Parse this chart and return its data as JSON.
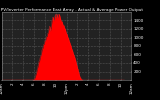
{
  "title": "Solar PV/Inverter Performance East Array - Actual & Average Power Output",
  "bg_color": "#000000",
  "plot_bg_color": "#222222",
  "grid_color": "#555555",
  "fill_color": "#ff0000",
  "line_color": "#ff2222",
  "ylim": [
    0,
    1600
  ],
  "xlim": [
    0,
    287
  ],
  "x_ticks": [
    0,
    24,
    48,
    72,
    96,
    120,
    144,
    168,
    192,
    216,
    240,
    264,
    287
  ],
  "x_tick_labels": [
    "12am",
    "2",
    "4",
    "6",
    "8",
    "10",
    "12pm",
    "2",
    "4",
    "6",
    "8",
    "10",
    "12am"
  ],
  "y_ticks": [
    200,
    400,
    600,
    800,
    1000,
    1200,
    1400
  ],
  "actual_power": [
    0,
    0,
    0,
    0,
    0,
    0,
    0,
    0,
    0,
    0,
    0,
    0,
    0,
    0,
    0,
    0,
    0,
    0,
    0,
    0,
    0,
    0,
    0,
    0,
    0,
    0,
    0,
    0,
    0,
    0,
    0,
    0,
    0,
    0,
    0,
    0,
    0,
    0,
    0,
    0,
    0,
    0,
    0,
    0,
    0,
    0,
    0,
    0,
    0,
    0,
    0,
    0,
    0,
    0,
    0,
    0,
    0,
    0,
    0,
    0,
    0,
    0,
    0,
    0,
    0,
    0,
    0,
    2,
    5,
    8,
    12,
    18,
    25,
    40,
    60,
    90,
    130,
    160,
    200,
    240,
    280,
    310,
    350,
    390,
    420,
    460,
    500,
    530,
    560,
    600,
    640,
    670,
    700,
    730,
    760,
    790,
    810,
    840,
    870,
    900,
    920,
    950,
    980,
    1010,
    1040,
    1070,
    1100,
    1130,
    1060,
    1100,
    1150,
    1200,
    1250,
    1280,
    1300,
    1320,
    1290,
    1310,
    1340,
    1380,
    1350,
    1380,
    1400,
    1420,
    1380,
    1360,
    1400,
    1430,
    1410,
    1390,
    1370,
    1350,
    1330,
    1300,
    1280,
    1260,
    1240,
    1210,
    1190,
    1170,
    1150,
    1130,
    1100,
    1070,
    1050,
    1020,
    990,
    960,
    930,
    900,
    870,
    840,
    810,
    780,
    750,
    720,
    690,
    660,
    630,
    600,
    570,
    540,
    510,
    480,
    440,
    400,
    360,
    320,
    280,
    240,
    200,
    160,
    120,
    90,
    60,
    40,
    25,
    15,
    8,
    4,
    2,
    0,
    0,
    0,
    0,
    0,
    0,
    0,
    0,
    0,
    0,
    0,
    0,
    0,
    0,
    0,
    0,
    0,
    0,
    0,
    0,
    0,
    0,
    0,
    0,
    0,
    0,
    0,
    0,
    0,
    0,
    0,
    0,
    0,
    0,
    0,
    0,
    0,
    0,
    0,
    0,
    0,
    0,
    0,
    0,
    0,
    0,
    0,
    0,
    0,
    0,
    0,
    0,
    0,
    0,
    0,
    0,
    0,
    0,
    0,
    0,
    0,
    0,
    0,
    0,
    0,
    0,
    0,
    0,
    0,
    0,
    0,
    0,
    0,
    0,
    0,
    0,
    0,
    0,
    0,
    0,
    0,
    0,
    0,
    0,
    0,
    0,
    0,
    0,
    0,
    0,
    0,
    0
  ],
  "spiky_offsets": [
    0,
    0,
    0,
    0,
    0,
    0,
    0,
    0,
    0,
    0,
    0,
    0,
    0,
    0,
    0,
    0,
    0,
    0,
    0,
    0,
    0,
    0,
    0,
    0,
    0,
    0,
    0,
    0,
    0,
    0,
    0,
    0,
    0,
    0,
    0,
    0,
    0,
    0,
    0,
    0,
    0,
    0,
    0,
    0,
    0,
    0,
    0,
    0,
    0,
    0,
    0,
    0,
    0,
    0,
    0,
    0,
    0,
    0,
    0,
    0,
    0,
    0,
    0,
    0,
    0,
    0,
    0,
    0,
    0,
    0,
    0,
    0,
    0,
    0,
    0,
    0,
    0,
    0,
    10,
    30,
    20,
    40,
    50,
    60,
    30,
    50,
    70,
    40,
    60,
    80,
    100,
    70,
    90,
    110,
    80,
    100,
    120,
    80,
    100,
    120,
    100,
    80,
    120,
    100,
    120,
    140,
    160,
    140,
    80,
    100,
    120,
    150,
    180,
    200,
    180,
    160,
    100,
    130,
    160,
    180,
    100,
    120,
    160,
    180,
    120,
    100,
    150,
    180,
    150,
    120,
    100,
    80,
    60,
    80,
    100,
    80,
    60,
    80,
    100,
    80,
    60,
    80,
    60,
    50,
    40,
    60,
    50,
    40,
    60,
    50,
    40,
    50,
    40,
    50,
    40,
    30,
    30,
    40,
    30,
    20,
    30,
    20,
    30,
    20,
    30,
    20,
    10,
    20,
    10,
    20,
    10,
    20,
    10,
    5,
    5,
    10,
    5,
    5,
    3,
    2,
    0,
    0,
    0,
    0,
    0,
    0,
    0,
    0,
    0,
    0,
    0,
    0,
    0,
    0,
    0,
    0,
    0,
    0,
    0,
    0,
    0,
    0,
    0,
    0,
    0,
    0,
    0,
    0,
    0,
    0,
    0,
    0,
    0,
    0,
    0,
    0,
    0,
    0,
    0,
    0,
    0,
    0,
    0,
    0,
    0,
    0,
    0,
    0,
    0,
    0,
    0,
    0,
    0,
    0,
    0,
    0,
    0,
    0,
    0,
    0,
    0,
    0,
    0,
    0,
    0,
    0,
    0,
    0,
    0,
    0,
    0,
    0,
    0,
    0,
    0,
    0,
    0,
    0,
    0,
    0,
    0,
    0,
    0,
    0,
    0,
    0,
    0,
    0,
    0,
    0,
    0,
    0,
    0
  ]
}
